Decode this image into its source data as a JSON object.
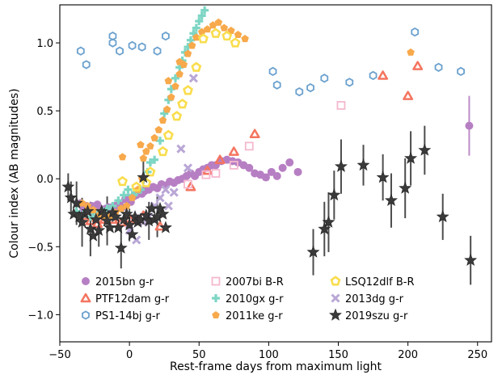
{
  "chart_data": {
    "type": "scatter",
    "xlabel": "Rest-frame days from maximum light",
    "ylabel": "Colour index (AB magnitudes)",
    "xlim": [
      -50,
      260
    ],
    "ylim": [
      -1.2,
      1.28
    ],
    "xticks": [
      -50,
      0,
      50,
      100,
      150,
      200,
      250
    ],
    "yticks": [
      -1.0,
      -0.5,
      0.0,
      0.5,
      1.0
    ],
    "xtick_labels": [
      "−50",
      "0",
      "50",
      "100",
      "150",
      "200",
      "250"
    ],
    "ytick_labels": [
      "−1.0",
      "−0.5",
      "0.0",
      "0.5",
      "1.0"
    ],
    "grid": false,
    "legend_position": "bottom",
    "series": [
      {
        "name": "2015bn g-r",
        "marker": "circle",
        "color": "#b77fc3",
        "points": [
          [
            -35,
            -0.18
          ],
          [
            -33,
            -0.22
          ],
          [
            -31,
            -0.2
          ],
          [
            -29,
            -0.23
          ],
          [
            -27,
            -0.2
          ],
          [
            -25,
            -0.26
          ],
          [
            -23,
            -0.19
          ],
          [
            -21,
            -0.22
          ],
          [
            -19,
            -0.25
          ],
          [
            -17,
            -0.22
          ],
          [
            -15,
            -0.21
          ],
          [
            -13,
            -0.24
          ],
          [
            -11,
            -0.2
          ],
          [
            -9,
            -0.22
          ],
          [
            -7,
            -0.18
          ],
          [
            -5,
            -0.21
          ],
          [
            -3,
            -0.15
          ],
          [
            -1,
            -0.14
          ],
          [
            1,
            -0.17
          ],
          [
            3,
            -0.13
          ],
          [
            5,
            -0.12
          ],
          [
            7,
            -0.1
          ],
          [
            9,
            -0.11
          ],
          [
            11,
            -0.09
          ],
          [
            14,
            -0.08
          ],
          [
            17,
            -0.06
          ],
          [
            20,
            -0.07
          ],
          [
            23,
            -0.04
          ],
          [
            26,
            -0.05
          ],
          [
            29,
            -0.02
          ],
          [
            32,
            -0.03
          ],
          [
            35,
            -0.01
          ],
          [
            38,
            0.0
          ],
          [
            41,
            0.02
          ],
          [
            44,
            0.04
          ],
          [
            47,
            0.02
          ],
          [
            50,
            0.05
          ],
          [
            53,
            0.07
          ],
          [
            56,
            0.08
          ],
          [
            59,
            0.1
          ],
          [
            62,
            0.1
          ],
          [
            66,
            0.13
          ],
          [
            70,
            0.14
          ],
          [
            74,
            0.13
          ],
          [
            78,
            0.12
          ],
          [
            82,
            0.1
          ],
          [
            86,
            0.08
          ],
          [
            90,
            0.04
          ],
          [
            94,
            0.03
          ],
          [
            98,
            0.01
          ],
          [
            102,
            0.05
          ],
          [
            106,
            0.02
          ],
          [
            110,
            0.08
          ],
          [
            115,
            0.12
          ],
          [
            121,
            0.05
          ],
          [
            244,
            0.39
          ]
        ],
        "errors": [
          [
            244,
            0.22
          ]
        ]
      },
      {
        "name": "PTF12dam g-r",
        "marker": "triangle",
        "color": "#f47560",
        "points": [
          [
            -33,
            -0.27
          ],
          [
            -28,
            -0.31
          ],
          [
            -23,
            -0.33
          ],
          [
            -18,
            -0.3
          ],
          [
            -12,
            -0.3
          ],
          [
            -6,
            -0.32
          ],
          [
            0,
            -0.29
          ],
          [
            6,
            -0.3
          ],
          [
            10,
            -0.27
          ],
          [
            22,
            -0.35
          ],
          [
            44,
            -0.06
          ],
          [
            56,
            0.06
          ],
          [
            65,
            0.14
          ],
          [
            75,
            0.2
          ],
          [
            90,
            0.33
          ],
          [
            182,
            0.76
          ],
          [
            200,
            0.61
          ],
          [
            207,
            0.83
          ]
        ]
      },
      {
        "name": "PS1-14bj g-r",
        "marker": "hexagon",
        "color": "#6ba1ce",
        "points": [
          [
            -35,
            0.94
          ],
          [
            -31,
            0.84
          ],
          [
            -12,
            1.0
          ],
          [
            -12,
            1.05
          ],
          [
            -7,
            0.94
          ],
          [
            2,
            0.98
          ],
          [
            9,
            0.97
          ],
          [
            20,
            0.94
          ],
          [
            26,
            1.05
          ],
          [
            103,
            0.79
          ],
          [
            106,
            0.69
          ],
          [
            122,
            0.64
          ],
          [
            130,
            0.67
          ],
          [
            140,
            0.74
          ],
          [
            158,
            0.71
          ],
          [
            175,
            0.76
          ],
          [
            205,
            1.08
          ],
          [
            222,
            0.82
          ],
          [
            238,
            0.79
          ]
        ]
      },
      {
        "name": "2007bi B-R",
        "marker": "square",
        "color": "#f5b8cf",
        "points": [
          [
            42,
            -0.04
          ],
          [
            55,
            0.03
          ],
          [
            62,
            0.04
          ],
          [
            75,
            0.1
          ],
          [
            86,
            0.24
          ],
          [
            152,
            0.54
          ]
        ]
      },
      {
        "name": "2010gx g-r",
        "marker": "plus",
        "color": "#7dd6c4",
        "points": [
          [
            -38,
            -0.24
          ],
          [
            -33,
            -0.26
          ],
          [
            -28,
            -0.28
          ],
          [
            -24,
            -0.26
          ],
          [
            -20,
            -0.24
          ],
          [
            -16,
            -0.22
          ],
          [
            -12,
            -0.2
          ],
          [
            -8,
            -0.16
          ],
          [
            -4,
            -0.12
          ],
          [
            -1,
            -0.08
          ],
          [
            2,
            -0.12
          ],
          [
            5,
            -0.1
          ],
          [
            8,
            -0.08
          ],
          [
            10,
            0.0
          ],
          [
            13,
            0.05
          ],
          [
            15,
            0.12
          ],
          [
            18,
            0.14
          ],
          [
            22,
            0.28
          ],
          [
            25,
            0.48
          ],
          [
            28,
            0.58
          ],
          [
            30,
            0.66
          ],
          [
            33,
            0.74
          ],
          [
            36,
            0.82
          ],
          [
            38,
            0.87
          ],
          [
            40,
            0.93
          ],
          [
            42,
            0.97
          ],
          [
            44,
            1.02
          ],
          [
            46,
            1.07
          ],
          [
            48,
            1.11
          ],
          [
            50,
            1.16
          ],
          [
            52,
            1.2
          ],
          [
            54,
            1.24
          ]
        ]
      },
      {
        "name": "2011ke g-r",
        "marker": "pentagon",
        "color": "#f7a94b",
        "points": [
          [
            -34,
            -0.18
          ],
          [
            -30,
            -0.2
          ],
          [
            -26,
            -0.23
          ],
          [
            -22,
            -0.27
          ],
          [
            -18,
            -0.28
          ],
          [
            -14,
            -0.27
          ],
          [
            -10,
            -0.25
          ],
          [
            -6,
            -0.22
          ],
          [
            -2,
            -0.2
          ],
          [
            2,
            -0.14
          ],
          [
            6,
            -0.08
          ],
          [
            9,
            0.0
          ],
          [
            10,
            0.15
          ],
          [
            12,
            0.2
          ],
          [
            15,
            0.24
          ],
          [
            18,
            0.3
          ],
          [
            21,
            0.36
          ],
          [
            24,
            0.43
          ],
          [
            27,
            0.51
          ],
          [
            30,
            0.6
          ],
          [
            33,
            0.68
          ],
          [
            36,
            0.77
          ],
          [
            39,
            0.84
          ],
          [
            42,
            0.92
          ],
          [
            45,
            0.98
          ],
          [
            48,
            1.04
          ],
          [
            52,
            1.08
          ],
          [
            56,
            1.1
          ],
          [
            60,
            1.13
          ],
          [
            64,
            1.15
          ],
          [
            68,
            1.11
          ],
          [
            73,
            1.09
          ],
          [
            78,
            1.06
          ],
          [
            83,
            1.03
          ],
          [
            -5,
            0.16
          ],
          [
            8,
            0.25
          ],
          [
            28,
            0.72
          ],
          [
            36,
            0.86
          ],
          [
            202,
            0.93
          ]
        ]
      },
      {
        "name": "LSQ12dlf B-R",
        "marker": "pentagon-open",
        "color": "#f9dd4d",
        "points": [
          [
            -5,
            -0.02
          ],
          [
            5,
            -0.06
          ],
          [
            12,
            -0.03
          ],
          [
            15,
            0.05
          ],
          [
            24,
            0.2
          ],
          [
            28,
            0.32
          ],
          [
            34,
            0.46
          ],
          [
            38,
            0.55
          ],
          [
            42,
            0.65
          ],
          [
            48,
            0.82
          ],
          [
            53,
            1.03
          ],
          [
            62,
            1.07
          ],
          [
            70,
            1.05
          ],
          [
            76,
            1.0
          ]
        ]
      },
      {
        "name": "2013dg g-r",
        "marker": "x",
        "color": "#b9a7d6",
        "points": [
          [
            0,
            -0.38
          ],
          [
            5,
            -0.45
          ],
          [
            10,
            -0.32
          ],
          [
            14,
            -0.28
          ],
          [
            18,
            -0.2
          ],
          [
            22,
            -0.14
          ],
          [
            26,
            -0.08
          ],
          [
            28,
            -0.2
          ],
          [
            32,
            -0.1
          ],
          [
            37,
            0.22
          ],
          [
            42,
            0.08
          ],
          [
            46,
            0.74
          ]
        ]
      },
      {
        "name": "2019szu g-r",
        "marker": "star",
        "color": "#3a3a3a",
        "points": [
          [
            -44,
            -0.06
          ],
          [
            -42,
            -0.14
          ],
          [
            -40,
            -0.26
          ],
          [
            -38,
            -0.18
          ],
          [
            -36,
            -0.28
          ],
          [
            -34,
            -0.32
          ],
          [
            -32,
            -0.26
          ],
          [
            -30,
            -0.24
          ],
          [
            -28,
            -0.37
          ],
          [
            -26,
            -0.42
          ],
          [
            -24,
            -0.3
          ],
          [
            -22,
            -0.38
          ],
          [
            -20,
            -0.24
          ],
          [
            -18,
            -0.26
          ],
          [
            -16,
            -0.31
          ],
          [
            -14,
            -0.36
          ],
          [
            -12,
            -0.25
          ],
          [
            -10,
            -0.28
          ],
          [
            -8,
            -0.36
          ],
          [
            -6,
            -0.51
          ],
          [
            -4,
            -0.3
          ],
          [
            -2,
            -0.26
          ],
          [
            0,
            -0.34
          ],
          [
            2,
            -0.41
          ],
          [
            4,
            -0.28
          ],
          [
            6,
            -0.32
          ],
          [
            8,
            -0.3
          ],
          [
            10,
            0.01
          ],
          [
            12,
            -0.27
          ],
          [
            14,
            -0.31
          ],
          [
            16,
            -0.22
          ],
          [
            18,
            -0.3
          ],
          [
            20,
            -0.28
          ],
          [
            22,
            -0.22
          ],
          [
            24,
            -0.26
          ],
          [
            26,
            -0.36
          ],
          [
            132,
            -0.54
          ],
          [
            140,
            -0.37
          ],
          [
            143,
            -0.32
          ],
          [
            147,
            -0.12
          ],
          [
            152,
            0.09
          ],
          [
            168,
            0.1
          ],
          [
            182,
            0.01
          ],
          [
            188,
            -0.16
          ],
          [
            198,
            -0.07
          ],
          [
            202,
            0.15
          ],
          [
            212,
            0.21
          ],
          [
            225,
            -0.28
          ],
          [
            245,
            -0.6
          ]
        ],
        "errors": [
          [
            -44,
            0.1
          ],
          [
            -42,
            0.12
          ],
          [
            -38,
            0.16
          ],
          [
            -34,
            0.18
          ],
          [
            -28,
            0.2
          ],
          [
            -22,
            0.12
          ],
          [
            -16,
            0.18
          ],
          [
            -6,
            0.15
          ],
          [
            0,
            0.12
          ],
          [
            10,
            0.12
          ],
          [
            14,
            0.14
          ],
          [
            20,
            0.15
          ],
          [
            132,
            0.17
          ],
          [
            140,
            0.2
          ],
          [
            143,
            0.22
          ],
          [
            147,
            0.18
          ],
          [
            152,
            0.2
          ],
          [
            168,
            0.15
          ],
          [
            182,
            0.17
          ],
          [
            188,
            0.2
          ],
          [
            198,
            0.22
          ],
          [
            202,
            0.2
          ],
          [
            212,
            0.18
          ],
          [
            225,
            0.17
          ],
          [
            245,
            0.18
          ]
        ]
      }
    ]
  }
}
